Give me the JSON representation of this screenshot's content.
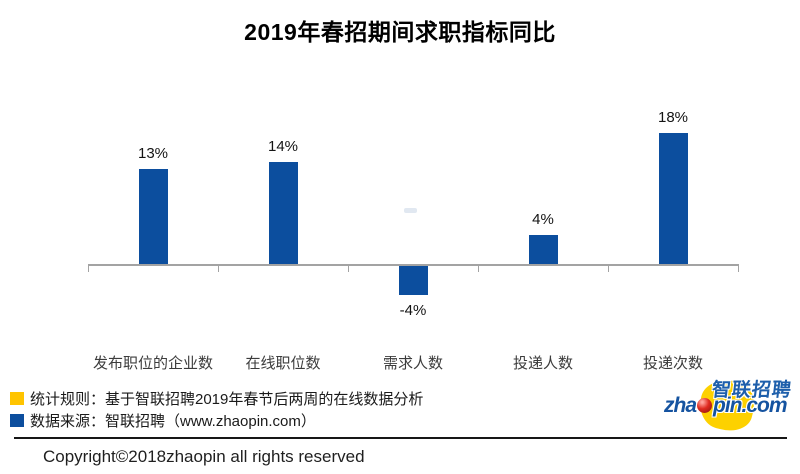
{
  "title": "2019年春招期间求职指标同比",
  "chart_data": {
    "type": "bar",
    "title": "2019年春招期间求职指标同比",
    "categories": [
      "发布职位的企业数",
      "在线职位数",
      "需求人数",
      "投递人数",
      "投递次数"
    ],
    "values": [
      13,
      14,
      -4,
      4,
      18
    ],
    "value_labels": [
      "13%",
      "14%",
      "-4%",
      "4%",
      "18%"
    ],
    "xlabel": "",
    "ylabel": "",
    "ylim": [
      -6,
      20
    ],
    "grid": false,
    "bar_color": "#0C4E9E",
    "axis_color": "#A3A3A3",
    "legend_position": "bottom-left"
  },
  "legend": {
    "items": [
      {
        "swatch_color": "#FFC400",
        "label": "统计规则：基于智联招聘2019年春节后两周的在线数据分析"
      },
      {
        "swatch_color": "#0C4E9E",
        "label": "数据来源：智联招聘（www.zhaopin.com）"
      }
    ]
  },
  "logo": {
    "cjk": "智联招聘",
    "domain_prefix": "zha",
    "domain_suffix": "pin.com",
    "blob_color": "#FDD100",
    "dot_color": "#E02B20",
    "text_color": "#1E5FAB"
  },
  "footer": {
    "copyright": "Copyright©2018zhaopin all rights reserved"
  }
}
